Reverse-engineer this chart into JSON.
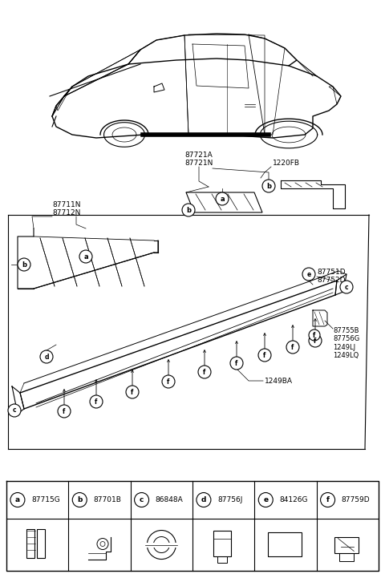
{
  "background_color": "#ffffff",
  "fig_width": 4.8,
  "fig_height": 7.16,
  "dpi": 100,
  "part_labels": [
    {
      "letter": "a",
      "code": "87715G"
    },
    {
      "letter": "b",
      "code": "87701B"
    },
    {
      "letter": "c",
      "code": "86848A"
    },
    {
      "letter": "d",
      "code": "87756J"
    },
    {
      "letter": "e",
      "code": "84126G"
    },
    {
      "letter": "f",
      "code": "87759D"
    }
  ],
  "label_87721": "87721A\n87721N",
  "label_1220": "1220FB",
  "label_87711": "87711N\n87712N",
  "label_87751": "87751D\n87752D",
  "label_87755": "87755B\n87756G\n1249LJ\n1249LQ",
  "label_1249BA": "1249BA"
}
